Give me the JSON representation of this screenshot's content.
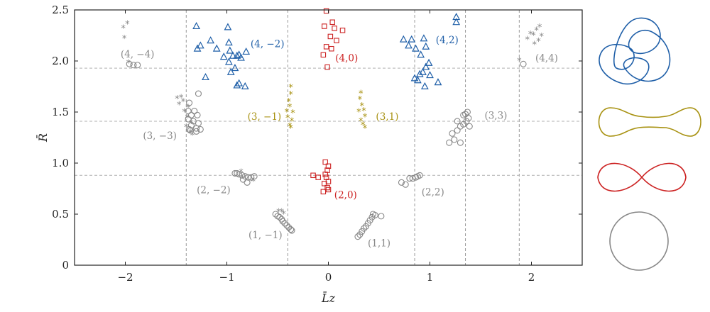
{
  "chart_data": {
    "type": "scatter",
    "xlabel": "L̄z",
    "ylabel": "R̄",
    "xlim": [
      -2.5,
      2.5
    ],
    "ylim": [
      0,
      2.5
    ],
    "xticks": [
      -2,
      -1,
      0,
      1,
      2
    ],
    "yticks": [
      0,
      0.5,
      1.0,
      1.5,
      2.0,
      2.5
    ],
    "xtick_labels": [
      "−2",
      "−1",
      "0",
      "1",
      "2"
    ],
    "ytick_labels": [
      "0",
      "0.5",
      "1.0",
      "1.5",
      "2.0",
      "2.5"
    ],
    "grid": "dashed reference lines",
    "vlines": [
      -1.4,
      -0.4,
      0.85,
      1.35,
      1.88
    ],
    "hlines": [
      0.88,
      1.41,
      1.93
    ],
    "colors": {
      "gray": "#888888",
      "olive": "#a89212",
      "red": "#cc2222",
      "blue": "#1f5fa8"
    },
    "series": [
      {
        "color": "gray",
        "marker": "circle",
        "points": [
          [
            -0.52,
            0.5
          ],
          [
            -0.5,
            0.48
          ],
          [
            -0.48,
            0.47
          ],
          [
            -0.46,
            0.45
          ],
          [
            -0.45,
            0.43
          ],
          [
            -0.43,
            0.41
          ],
          [
            -0.41,
            0.39
          ],
          [
            -0.39,
            0.37
          ],
          [
            -0.37,
            0.35
          ],
          [
            -0.36,
            0.34
          ],
          [
            0.29,
            0.28
          ],
          [
            0.31,
            0.3
          ],
          [
            0.33,
            0.33
          ],
          [
            0.35,
            0.36
          ],
          [
            0.37,
            0.38
          ],
          [
            0.39,
            0.41
          ],
          [
            0.41,
            0.44
          ],
          [
            0.43,
            0.47
          ],
          [
            0.44,
            0.5
          ],
          [
            0.46,
            0.49
          ],
          [
            0.52,
            0.48
          ],
          [
            -0.92,
            0.9
          ],
          [
            -0.88,
            0.89
          ],
          [
            -0.85,
            0.88
          ],
          [
            -0.82,
            0.87
          ],
          [
            -0.79,
            0.86
          ],
          [
            -0.76,
            0.86
          ],
          [
            -0.73,
            0.87
          ],
          [
            -0.8,
            0.81
          ],
          [
            -0.84,
            0.84
          ],
          [
            -0.9,
            0.9
          ],
          [
            0.72,
            0.81
          ],
          [
            0.76,
            0.79
          ],
          [
            0.8,
            0.85
          ],
          [
            0.83,
            0.85
          ],
          [
            0.86,
            0.86
          ],
          [
            0.88,
            0.87
          ],
          [
            0.9,
            0.88
          ],
          [
            -1.37,
            1.59
          ],
          [
            -1.32,
            1.51
          ],
          [
            -1.38,
            1.51
          ],
          [
            -1.35,
            1.47
          ],
          [
            -1.29,
            1.47
          ],
          [
            -1.38,
            1.43
          ],
          [
            -1.33,
            1.41
          ],
          [
            -1.28,
            1.39
          ],
          [
            -1.35,
            1.37
          ],
          [
            -1.3,
            1.34
          ],
          [
            -1.26,
            1.33
          ],
          [
            -1.36,
            1.32
          ],
          [
            -1.3,
            1.31
          ],
          [
            -1.37,
            1.33
          ],
          [
            -1.28,
            1.68
          ],
          [
            1.19,
            1.2
          ],
          [
            1.24,
            1.23
          ],
          [
            1.3,
            1.2
          ],
          [
            1.22,
            1.29
          ],
          [
            1.27,
            1.32
          ],
          [
            1.3,
            1.36
          ],
          [
            1.33,
            1.38
          ],
          [
            1.36,
            1.41
          ],
          [
            1.38,
            1.44
          ],
          [
            1.33,
            1.47
          ],
          [
            1.27,
            1.41
          ],
          [
            1.39,
            1.36
          ],
          [
            1.35,
            1.48
          ],
          [
            1.37,
            1.5
          ],
          [
            -1.96,
            1.97
          ],
          [
            -1.92,
            1.96
          ],
          [
            -1.88,
            1.96
          ],
          [
            1.92,
            1.97
          ]
        ]
      },
      {
        "color": "gray",
        "marker": "star",
        "points": [
          [
            -0.49,
            0.52
          ],
          [
            -0.46,
            0.52
          ],
          [
            -0.44,
            0.5
          ],
          [
            -0.74,
            0.82
          ],
          [
            -0.86,
            0.91
          ],
          [
            -1.49,
            1.63
          ],
          [
            -1.45,
            1.64
          ],
          [
            -1.47,
            1.57
          ],
          [
            -1.43,
            1.6
          ],
          [
            -1.38,
            1.54
          ],
          [
            -1.42,
            1.5
          ],
          [
            -1.39,
            1.44
          ],
          [
            -1.35,
            1.39
          ],
          [
            -1.4,
            1.35
          ],
          [
            -1.36,
            1.3
          ],
          [
            -1.34,
            1.27
          ],
          [
            -2.02,
            2.32
          ],
          [
            -1.98,
            2.36
          ],
          [
            -2.01,
            2.22
          ],
          [
            -1.97,
            1.98
          ],
          [
            1.88,
            2.0
          ],
          [
            1.96,
            2.21
          ],
          [
            2.02,
            2.25
          ],
          [
            2.07,
            2.19
          ],
          [
            2.1,
            2.24
          ],
          [
            2.05,
            2.3
          ],
          [
            1.99,
            2.26
          ],
          [
            2.08,
            2.33
          ],
          [
            2.03,
            2.16
          ]
        ]
      },
      {
        "color": "olive",
        "marker": "star",
        "points": [
          [
            -0.37,
            1.74
          ],
          [
            -0.37,
            1.67
          ],
          [
            -0.39,
            1.6
          ],
          [
            -0.38,
            1.55
          ],
          [
            -0.41,
            1.5
          ],
          [
            -0.35,
            1.49
          ],
          [
            -0.4,
            1.44
          ],
          [
            -0.36,
            1.41
          ],
          [
            -0.38,
            1.36
          ],
          [
            -0.37,
            1.34
          ],
          [
            0.32,
            1.68
          ],
          [
            0.31,
            1.62
          ],
          [
            0.33,
            1.56
          ],
          [
            0.35,
            1.51
          ],
          [
            0.3,
            1.5
          ],
          [
            0.36,
            1.45
          ],
          [
            0.32,
            1.41
          ],
          [
            0.34,
            1.37
          ],
          [
            0.36,
            1.34
          ]
        ]
      },
      {
        "color": "red",
        "marker": "square",
        "points": [
          [
            -0.02,
            2.49
          ],
          [
            0.04,
            2.38
          ],
          [
            0.06,
            2.32
          ],
          [
            0.14,
            2.3
          ],
          [
            -0.04,
            2.34
          ],
          [
            0.02,
            2.24
          ],
          [
            0.08,
            2.2
          ],
          [
            -0.02,
            2.14
          ],
          [
            -0.05,
            2.06
          ],
          [
            0.03,
            2.12
          ],
          [
            -0.01,
            1.94
          ],
          [
            -0.15,
            0.88
          ],
          [
            -0.1,
            0.86
          ],
          [
            -0.03,
            1.01
          ],
          [
            0.0,
            0.97
          ],
          [
            -0.01,
            0.93
          ],
          [
            -0.03,
            0.89
          ],
          [
            -0.02,
            0.86
          ],
          [
            0.0,
            0.82
          ],
          [
            -0.04,
            0.8
          ],
          [
            -0.01,
            0.76
          ],
          [
            0.0,
            0.74
          ],
          [
            -0.05,
            0.72
          ]
        ]
      },
      {
        "color": "blue",
        "marker": "triangle",
        "points": [
          [
            -1.3,
            2.34
          ],
          [
            -1.29,
            2.12
          ],
          [
            -1.26,
            2.15
          ],
          [
            -1.16,
            2.2
          ],
          [
            -1.1,
            2.12
          ],
          [
            -1.03,
            2.04
          ],
          [
            -0.99,
            2.33
          ],
          [
            -0.98,
            2.18
          ],
          [
            -0.97,
            2.1
          ],
          [
            -0.94,
            2.05
          ],
          [
            -0.9,
            2.05
          ],
          [
            -0.88,
            2.06
          ],
          [
            -0.86,
            2.03
          ],
          [
            -0.81,
            2.09
          ],
          [
            -0.92,
            1.93
          ],
          [
            -0.9,
            1.76
          ],
          [
            -0.88,
            1.78
          ],
          [
            -0.82,
            1.75
          ],
          [
            -0.96,
            1.89
          ],
          [
            -1.21,
            1.84
          ],
          [
            -0.98,
            1.99
          ],
          [
            0.74,
            2.21
          ],
          [
            0.79,
            2.15
          ],
          [
            0.82,
            2.21
          ],
          [
            0.86,
            2.12
          ],
          [
            0.91,
            2.06
          ],
          [
            0.94,
            2.22
          ],
          [
            0.96,
            2.14
          ],
          [
            1.26,
            2.43
          ],
          [
            1.26,
            2.38
          ],
          [
            0.96,
            1.94
          ],
          [
            0.99,
            1.98
          ],
          [
            0.93,
            1.89
          ],
          [
            0.9,
            1.87
          ],
          [
            0.88,
            1.81
          ],
          [
            0.85,
            1.83
          ],
          [
            1.0,
            1.86
          ],
          [
            0.95,
            1.75
          ],
          [
            1.08,
            1.79
          ]
        ]
      }
    ],
    "annotations": [
      {
        "text": "(4, −4)",
        "color": "gray",
        "x": -1.88,
        "y": 2.07
      },
      {
        "text": "(4, −2)",
        "color": "blue",
        "x": -0.6,
        "y": 2.17
      },
      {
        "text": "(4,0)",
        "color": "red",
        "x": 0.18,
        "y": 2.03
      },
      {
        "text": "(4,2)",
        "color": "blue",
        "x": 1.17,
        "y": 2.21
      },
      {
        "text": "(4,4)",
        "color": "gray",
        "x": 2.15,
        "y": 2.03
      },
      {
        "text": "(3, −1)",
        "color": "olive",
        "x": -0.63,
        "y": 1.46
      },
      {
        "text": "(3,1)",
        "color": "olive",
        "x": 0.58,
        "y": 1.46
      },
      {
        "text": "(3, −3)",
        "color": "gray",
        "x": -1.66,
        "y": 1.27
      },
      {
        "text": "(3,3)",
        "color": "gray",
        "x": 1.65,
        "y": 1.47
      },
      {
        "text": "(2, −2)",
        "color": "gray",
        "x": -1.13,
        "y": 0.74
      },
      {
        "text": "(2,0)",
        "color": "red",
        "x": 0.17,
        "y": 0.69
      },
      {
        "text": "(2,2)",
        "color": "gray",
        "x": 1.03,
        "y": 0.72
      },
      {
        "text": "(1, −1)",
        "color": "gray",
        "x": -0.62,
        "y": 0.3
      },
      {
        "text": "(1,1)",
        "color": "gray",
        "x": 0.5,
        "y": 0.22
      }
    ]
  }
}
